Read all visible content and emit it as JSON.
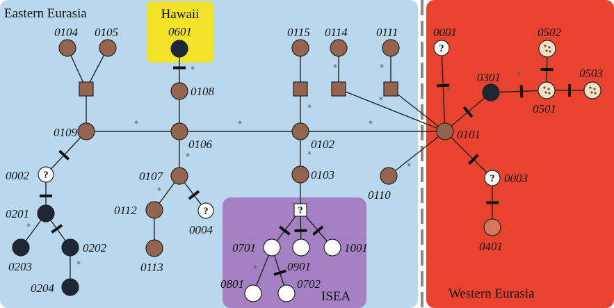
{
  "regions": {
    "eastern_eurasia": {
      "label": "Eastern Eurasia",
      "color": "#b9d8ee"
    },
    "hawaii": {
      "label": "Hawaii",
      "color": "#f2e22a"
    },
    "isea": {
      "label": "ISEA",
      "color": "#a581c4"
    },
    "western_eurasia": {
      "label": "Western Eurasia",
      "color": "#e8432f"
    }
  },
  "colors": {
    "brown": "#94644f",
    "dark": "#202734",
    "coral": "#d9775b",
    "cream": "#efe2c4",
    "white": "#ffffff",
    "divider": "#8a8a8a"
  },
  "nodes": [
    {
      "id": "0104",
      "label": "0104",
      "style": "brown"
    },
    {
      "id": "0105",
      "label": "0105",
      "style": "brown"
    },
    {
      "id": "0601",
      "label": "0601",
      "style": "dark"
    },
    {
      "id": "0108",
      "label": "0108",
      "style": "brown"
    },
    {
      "id": "0109",
      "label": "0109",
      "style": "brown"
    },
    {
      "id": "0106",
      "label": "0106",
      "style": "brown"
    },
    {
      "id": "0107",
      "label": "0107",
      "style": "brown"
    },
    {
      "id": "0112",
      "label": "0112",
      "style": "brown"
    },
    {
      "id": "0113",
      "label": "0113",
      "style": "brown"
    },
    {
      "id": "0004",
      "label": "0004",
      "style": "unknown"
    },
    {
      "id": "0002",
      "label": "0002",
      "style": "unknown"
    },
    {
      "id": "0201",
      "label": "0201",
      "style": "dark"
    },
    {
      "id": "0203",
      "label": "0203",
      "style": "dark"
    },
    {
      "id": "0202",
      "label": "0202",
      "style": "dark"
    },
    {
      "id": "0204",
      "label": "0204",
      "style": "dark"
    },
    {
      "id": "0115",
      "label": "0115",
      "style": "brown"
    },
    {
      "id": "0114",
      "label": "0114",
      "style": "brown"
    },
    {
      "id": "0111",
      "label": "0111",
      "style": "brown"
    },
    {
      "id": "0102",
      "label": "0102",
      "style": "brown"
    },
    {
      "id": "0103",
      "label": "0103",
      "style": "brown"
    },
    {
      "id": "0110",
      "label": "0110",
      "style": "brown"
    },
    {
      "id": "0101",
      "label": "0101",
      "style": "brown"
    },
    {
      "id": "0701",
      "label": "0701",
      "style": "white"
    },
    {
      "id": "0901",
      "label": "0901",
      "style": "white"
    },
    {
      "id": "1001",
      "label": "1001",
      "style": "white"
    },
    {
      "id": "0801",
      "label": "0801",
      "style": "white"
    },
    {
      "id": "0702",
      "label": "0702",
      "style": "white"
    },
    {
      "id": "0001",
      "label": "0001",
      "style": "unknown"
    },
    {
      "id": "0301",
      "label": "0301",
      "style": "dark"
    },
    {
      "id": "0501",
      "label": "0501",
      "style": "cream"
    },
    {
      "id": "0502",
      "label": "0502",
      "style": "cream"
    },
    {
      "id": "0503",
      "label": "0503",
      "style": "cream"
    },
    {
      "id": "0003",
      "label": "0003",
      "style": "unknown"
    },
    {
      "id": "0401",
      "label": "0401",
      "style": "coral"
    }
  ],
  "unknown_symbol": "?",
  "mutation_marker": "*"
}
